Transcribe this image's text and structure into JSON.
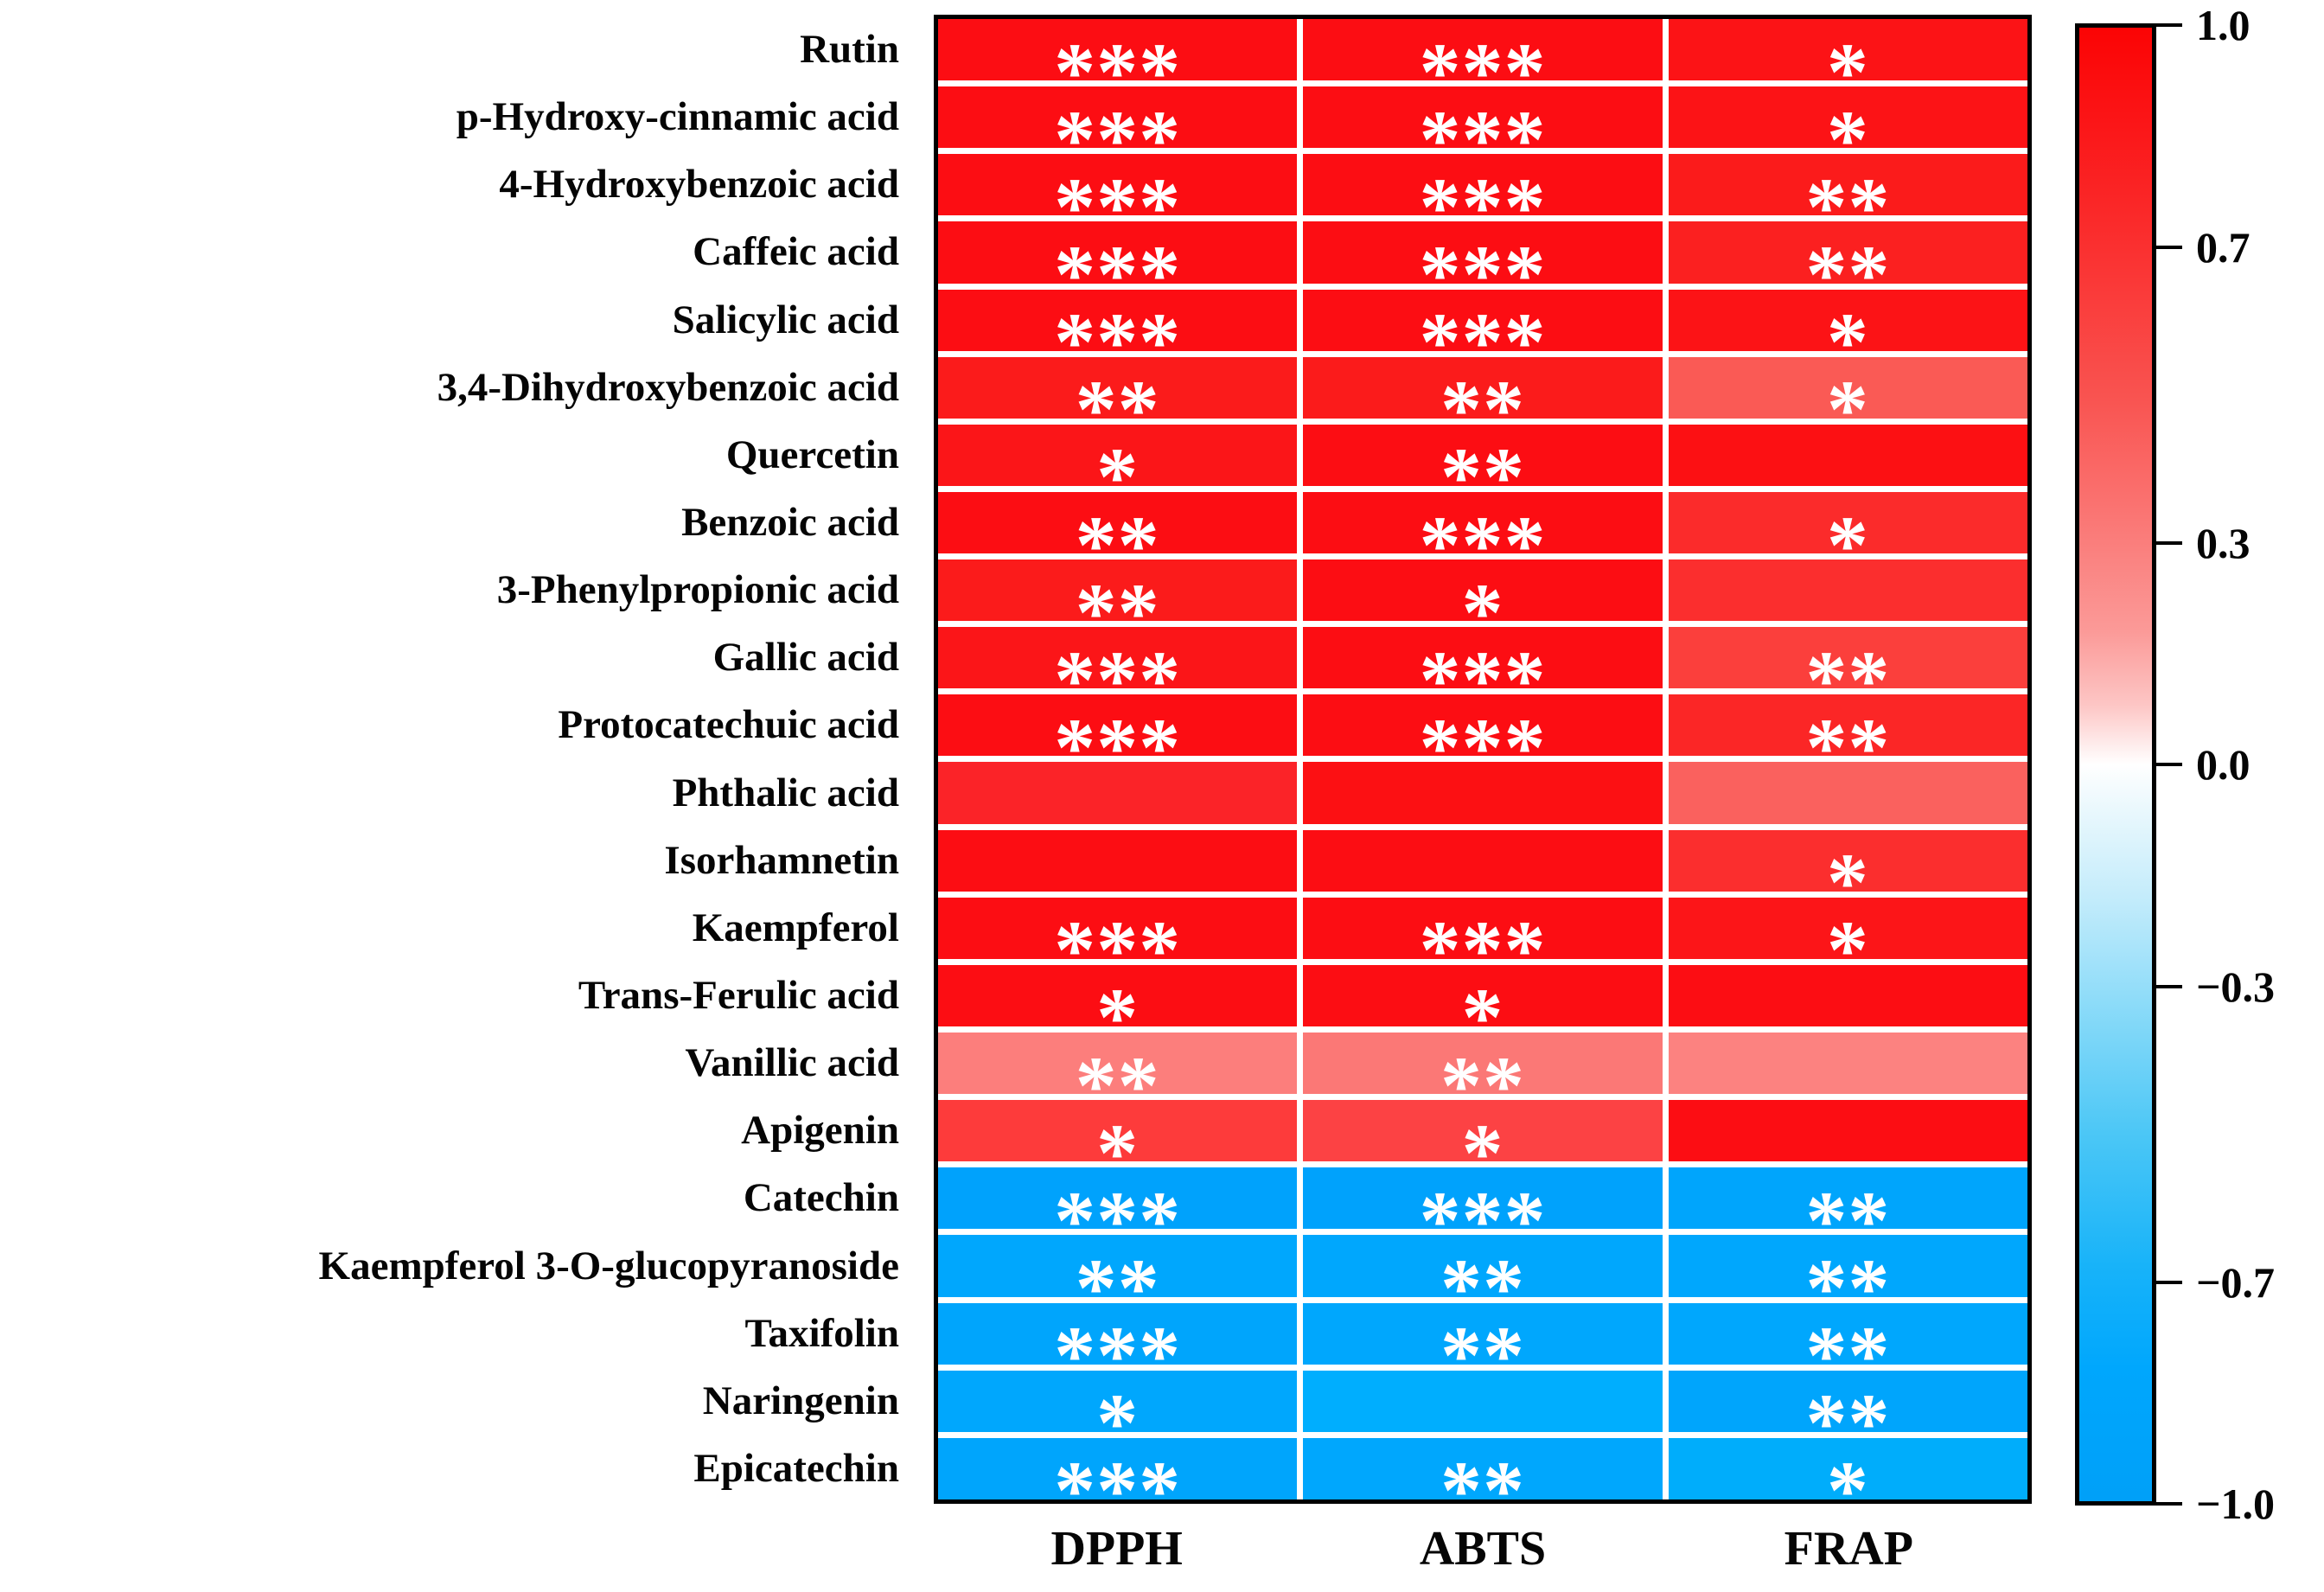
{
  "figure": {
    "background": "#ffffff",
    "border_color": "#000000",
    "gridline_color": "#ffffff",
    "star_color": "#ffffff",
    "label_color": "#050505"
  },
  "chart_data": {
    "type": "heatmap",
    "title": "",
    "xlabel": "",
    "ylabel": "",
    "legend_position": "right-colorbar",
    "grid": "white gridlines between cells",
    "columns": [
      "DPPH",
      "ABTS",
      "FRAP"
    ],
    "significance_note": "asterisks shown inside cells",
    "rows": [
      {
        "label": "Rutin",
        "values": [
          0.95,
          0.95,
          0.94
        ],
        "significance": [
          "***",
          "***",
          "*"
        ],
        "colors": [
          "#fc0d13",
          "#fc0d13",
          "#fc1316"
        ]
      },
      {
        "label": "p-Hydroxy-cinnamic acid",
        "values": [
          0.95,
          0.95,
          0.94
        ],
        "significance": [
          "***",
          "***",
          "*"
        ],
        "colors": [
          "#fc0d13",
          "#fc0d13",
          "#fc1316"
        ]
      },
      {
        "label": "4-Hydroxybenzoic acid",
        "values": [
          0.95,
          0.95,
          0.92
        ],
        "significance": [
          "***",
          "***",
          "**"
        ],
        "colors": [
          "#fc0d13",
          "#fc0d13",
          "#fb1b1b"
        ]
      },
      {
        "label": "Caffeic acid",
        "values": [
          0.95,
          0.95,
          0.9
        ],
        "significance": [
          "***",
          "***",
          "**"
        ],
        "colors": [
          "#fc0d13",
          "#fc0d13",
          "#fb2020"
        ]
      },
      {
        "label": "Salicylic acid",
        "values": [
          0.95,
          0.95,
          0.94
        ],
        "significance": [
          "***",
          "***",
          "*"
        ],
        "colors": [
          "#fc0d13",
          "#fc0d13",
          "#fc1316"
        ]
      },
      {
        "label": "3,4-Dihydroxybenzoic acid",
        "values": [
          0.92,
          0.92,
          0.65
        ],
        "significance": [
          "**",
          "**",
          "*"
        ],
        "colors": [
          "#fb1b1b",
          "#fb1b1b",
          "#fa5a55"
        ]
      },
      {
        "label": "Quercetin",
        "values": [
          0.93,
          0.95,
          0.94
        ],
        "significance": [
          "*",
          "**",
          ""
        ],
        "colors": [
          "#fb1518",
          "#fc0d13",
          "#fc1013"
        ]
      },
      {
        "label": "Benzoic acid",
        "values": [
          0.95,
          0.95,
          0.87
        ],
        "significance": [
          "**",
          "***",
          "*"
        ],
        "colors": [
          "#fc0d13",
          "#fc0d13",
          "#fb2b2b"
        ]
      },
      {
        "label": "3-Phenylpropionic acid",
        "values": [
          0.92,
          0.95,
          0.86
        ],
        "significance": [
          "**",
          "*",
          ""
        ],
        "colors": [
          "#fb1b1b",
          "#fc0d13",
          "#fb2e2e"
        ]
      },
      {
        "label": "Gallic acid",
        "values": [
          0.93,
          0.95,
          0.8
        ],
        "significance": [
          "***",
          "***",
          "**"
        ],
        "colors": [
          "#fb1518",
          "#fc0d13",
          "#fb3f3c"
        ]
      },
      {
        "label": "Protocatechuic acid",
        "values": [
          0.95,
          0.95,
          0.88
        ],
        "significance": [
          "***",
          "***",
          "**"
        ],
        "colors": [
          "#fc0d13",
          "#fc0d13",
          "#fb2626"
        ]
      },
      {
        "label": "Phthalic acid",
        "values": [
          0.89,
          0.94,
          0.62
        ],
        "significance": [
          "",
          "",
          ""
        ],
        "colors": [
          "#fb2328",
          "#fc1013",
          "#fa615e"
        ]
      },
      {
        "label": "Isorhamnetin",
        "values": [
          0.95,
          0.95,
          0.86
        ],
        "significance": [
          "",
          "",
          "*"
        ],
        "colors": [
          "#fc0d13",
          "#fc0d13",
          "#fb2e2e"
        ]
      },
      {
        "label": "Kaempferol",
        "values": [
          0.95,
          0.95,
          0.93
        ],
        "significance": [
          "***",
          "***",
          "*"
        ],
        "colors": [
          "#fc0d13",
          "#fc0d13",
          "#fc1518"
        ]
      },
      {
        "label": "Trans-Ferulic acid",
        "values": [
          0.95,
          0.95,
          0.95
        ],
        "significance": [
          "*",
          "*",
          ""
        ],
        "colors": [
          "#fc0d13",
          "#fc0d13",
          "#fc0d13"
        ]
      },
      {
        "label": "Vanillic acid",
        "values": [
          0.5,
          0.52,
          0.48
        ],
        "significance": [
          "**",
          "**",
          ""
        ],
        "colors": [
          "#fc7e7c",
          "#fb7876",
          "#fc8280"
        ]
      },
      {
        "label": "Apigenin",
        "values": [
          0.77,
          0.74,
          0.95
        ],
        "significance": [
          "*",
          "*",
          ""
        ],
        "colors": [
          "#fd3b3b",
          "#fc4244",
          "#fc0d13"
        ]
      },
      {
        "label": "Catechin",
        "values": [
          -0.95,
          -0.95,
          -0.93
        ],
        "significance": [
          "***",
          "***",
          "**"
        ],
        "colors": [
          "#00a2fc",
          "#00a2fc",
          "#00a5fc"
        ]
      },
      {
        "label": "Kaempferol 3-O-glucopyranoside",
        "values": [
          -0.9,
          -0.9,
          -0.9
        ],
        "significance": [
          "**",
          "**",
          "**"
        ],
        "colors": [
          "#00a7fd",
          "#00a7fd",
          "#00a7fd"
        ]
      },
      {
        "label": "Taxifolin",
        "values": [
          -0.93,
          -0.9,
          -0.9
        ],
        "significance": [
          "***",
          "**",
          "**"
        ],
        "colors": [
          "#00a5fc",
          "#00a7fd",
          "#00a7fd"
        ]
      },
      {
        "label": "Naringenin",
        "values": [
          -0.9,
          -0.83,
          -0.92
        ],
        "significance": [
          "*",
          "",
          "**"
        ],
        "colors": [
          "#00a7fd",
          "#00aefe",
          "#00a5fc"
        ]
      },
      {
        "label": "Epicatechin",
        "values": [
          -0.93,
          -0.9,
          -0.85
        ],
        "significance": [
          "***",
          "**",
          "*"
        ],
        "colors": [
          "#00a5fc",
          "#00a7fd",
          "#00adfb"
        ]
      }
    ],
    "colorbar": {
      "min": -1.0,
      "max": 1.0,
      "tick_labels": [
        "1.0",
        "0.7",
        "0.3",
        "0.0",
        "−0.3",
        "−0.7",
        "−1.0"
      ],
      "tick_values": [
        1.0,
        0.7,
        0.3,
        0.0,
        -0.3,
        -0.7,
        -1.0
      ],
      "top_color": "#fb0404",
      "zero_color": "#ffffff",
      "bottom_color": "#00a0f8"
    }
  }
}
